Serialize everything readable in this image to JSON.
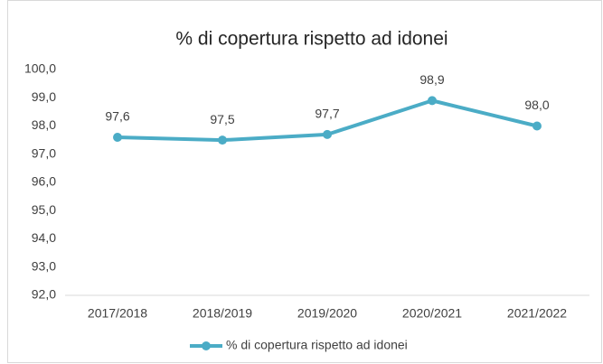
{
  "chart_data": {
    "type": "line",
    "title": "% di copertura rispetto ad idonei",
    "categories": [
      "2017/2018",
      "2018/2019",
      "2019/2020",
      "2020/2021",
      "2021/2022"
    ],
    "series": [
      {
        "name": "% di copertura rispetto ad idonei",
        "color": "#4bacc6",
        "values": [
          97.6,
          97.5,
          97.7,
          98.9,
          98.0
        ],
        "value_labels": [
          "97,6",
          "97,5",
          "97,7",
          "98,9",
          "98,0"
        ]
      }
    ],
    "ylim": [
      92,
      100
    ],
    "yticks": [
      {
        "value": 92,
        "label": "92,0"
      },
      {
        "value": 93,
        "label": "93,0"
      },
      {
        "value": 94,
        "label": "94,0"
      },
      {
        "value": 95,
        "label": "95,0"
      },
      {
        "value": 96,
        "label": "96,0"
      },
      {
        "value": 97,
        "label": "97,0"
      },
      {
        "value": 98,
        "label": "98,0"
      },
      {
        "value": 99,
        "label": "99,0"
      },
      {
        "value": 100,
        "label": "100,0"
      }
    ],
    "grid": false,
    "legend": "bottom"
  }
}
